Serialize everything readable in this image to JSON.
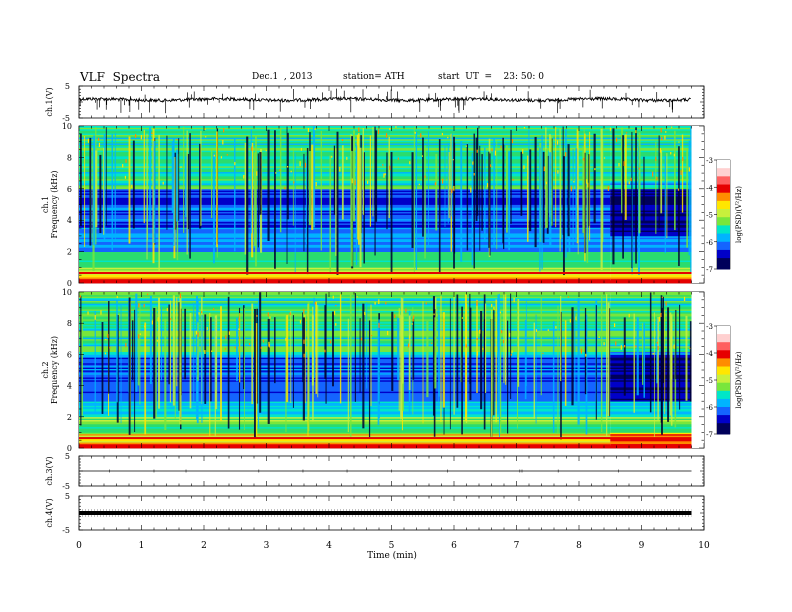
{
  "header": {
    "title": "VLF  Spectra",
    "date": "Dec.1  , 2013",
    "station": "station= ATH",
    "start": "start  UT  =    23: 50: 0"
  },
  "colors": {
    "spectrum": [
      "#00005a",
      "#0000c8",
      "#1464ff",
      "#00b4ff",
      "#00e6c8",
      "#2adc6e",
      "#78e63c",
      "#c8f03c",
      "#ffe600",
      "#ff8c00",
      "#e60000",
      "#ffffff"
    ]
  },
  "chart_data": [
    {
      "type": "line",
      "panel": "ch1-waveform",
      "ylabel": "ch.1(V)",
      "yticks": [
        "5",
        "-5"
      ],
      "ylim": [
        -5,
        5
      ],
      "xlim": [
        0,
        10
      ],
      "baseline": 0,
      "trace_end_min": 9.8
    },
    {
      "type": "heatmap",
      "panel": "ch1-spectrogram",
      "ylabel_top": "ch.1",
      "ylabel_bottom": "Frequency  (kHz)",
      "yticks": [
        "0",
        "2",
        "4",
        "6",
        "8",
        "10"
      ],
      "ylim": [
        0,
        10
      ],
      "xlim": [
        0,
        9.8
      ],
      "colorbar": {
        "label": "log(PSD)(V²/Hz)",
        "ticks": [
          "-3",
          "-4",
          "-5",
          "-6",
          "-7"
        ],
        "range": [
          -7,
          -3
        ]
      },
      "notes": "broadband impulsive bursts; change in background after 8.5 min"
    },
    {
      "type": "heatmap",
      "panel": "ch2-spectrogram",
      "ylabel_top": "ch.2",
      "ylabel_bottom": "Frequency  (kHz)",
      "yticks": [
        "0",
        "2",
        "4",
        "6",
        "8",
        "10"
      ],
      "ylim": [
        0,
        10
      ],
      "xlim": [
        0,
        9.8
      ],
      "colorbar": {
        "label": "log(PSD)(V²/Hz)",
        "ticks": [
          "-3",
          "-4",
          "-5",
          "-6",
          "-7"
        ],
        "range": [
          -7,
          -3
        ]
      }
    },
    {
      "type": "line",
      "panel": "ch3-waveform",
      "ylabel": "ch.3(V)",
      "yticks": [
        "5",
        "-5"
      ],
      "ylim": [
        -5,
        5
      ],
      "xlim": [
        0,
        10
      ],
      "baseline": 0
    },
    {
      "type": "line",
      "panel": "ch4-waveform",
      "ylabel": "ch.4(V)",
      "yticks": [
        "5",
        "-5"
      ],
      "ylim": [
        -5,
        5
      ],
      "xlim": [
        0,
        10
      ],
      "baseline": 0
    }
  ],
  "xaxis": {
    "label": "Time  (min)",
    "ticks": [
      "0",
      "1",
      "2",
      "3",
      "4",
      "5",
      "6",
      "7",
      "8",
      "9",
      "10"
    ]
  }
}
